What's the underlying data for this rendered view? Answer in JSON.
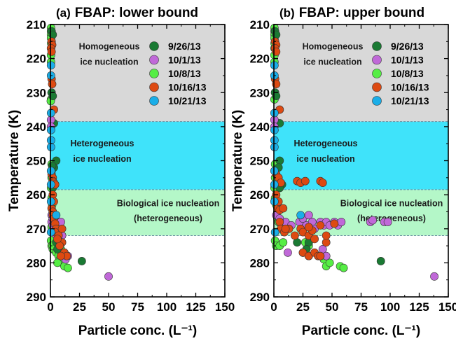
{
  "colors": {
    "homogeneous": "#d8d8d8",
    "heterogeneous": "#3fe3fa",
    "biological": "#b4f7c8",
    "series": {
      "9/26/13": "#1a7a33",
      "10/1/13": "#c068d8",
      "10/8/13": "#55ee44",
      "10/16/13": "#dd4a12",
      "10/21/13": "#1aaee8"
    }
  },
  "chart_data": [
    {
      "type": "scatter",
      "title": "(a) FBAP: lower bound",
      "title_letter": "(a)",
      "title_text": "FBAP: lower bound",
      "xlabel": "Particle conc. (L⁻¹)",
      "ylabel": "Temperature (K)",
      "xlim": [
        0,
        150
      ],
      "ylim": [
        210,
        290
      ],
      "y_inverted": true,
      "xticks": [
        0,
        25,
        50,
        75,
        100,
        125,
        150
      ],
      "yticks": [
        210,
        220,
        230,
        240,
        250,
        260,
        270,
        280,
        290
      ],
      "legend_position": "top-right",
      "regions": [
        {
          "name": "Homogeneous ice nucleation",
          "lines": [
            "Homogeneous",
            "ice nucleation"
          ],
          "y_range": [
            210,
            238.5
          ],
          "color_key": "homogeneous"
        },
        {
          "name": "Heterogeneous ice nucleation",
          "lines": [
            "Heterogeneous",
            "ice nucleation"
          ],
          "y_range": [
            238.5,
            258.5
          ],
          "color_key": "heterogeneous"
        },
        {
          "name": "Biological ice nucleation (heterogeneous)",
          "lines": [
            "Biological ice nucleation",
            "(heterogeneous)"
          ],
          "y_range": [
            258.5,
            272
          ],
          "color_key": "biological"
        }
      ],
      "series": [
        {
          "name": "10/8/13",
          "points": [
            [
              0.5,
              211
            ],
            [
              0.5,
              212
            ],
            [
              0.5,
              213
            ],
            [
              0.5,
              214
            ],
            [
              0.6,
              215.5
            ],
            [
              0.5,
              217
            ],
            [
              0.5,
              219
            ],
            [
              0.5,
              221
            ],
            [
              1,
              230
            ],
            [
              0.5,
              232
            ],
            [
              0.3,
              232.5
            ],
            [
              1,
              251
            ],
            [
              1,
              253
            ],
            [
              1,
              255
            ],
            [
              0.5,
              258
            ],
            [
              1,
              261
            ],
            [
              0.7,
              262
            ],
            [
              1.5,
              263
            ],
            [
              2,
              267
            ],
            [
              2,
              268
            ],
            [
              0.5,
              273.5
            ],
            [
              1,
              275
            ],
            [
              2,
              276
            ],
            [
              3,
              276
            ],
            [
              5,
              277
            ],
            [
              7,
              278
            ],
            [
              8,
              279
            ],
            [
              10,
              280
            ],
            [
              12,
              281
            ],
            [
              15,
              281.5
            ],
            [
              3,
              273
            ],
            [
              5,
              274
            ],
            [
              9,
              276
            ],
            [
              6,
              280
            ],
            [
              1,
              269.5
            ],
            [
              2,
              275
            ]
          ]
        },
        {
          "name": "9/26/13",
          "points": [
            [
              1,
              212
            ],
            [
              2,
              213
            ],
            [
              1,
              230
            ],
            [
              2,
              231
            ],
            [
              3,
              239
            ],
            [
              5,
              250
            ],
            [
              3,
              252
            ],
            [
              4,
              257
            ],
            [
              2,
              258
            ],
            [
              5,
              274
            ],
            [
              8,
              274
            ],
            [
              6,
              276
            ],
            [
              27,
              279.5
            ],
            [
              2,
              265
            ],
            [
              3,
              267.5
            ],
            [
              1.5,
              251.5
            ]
          ]
        },
        {
          "name": "10/1/13",
          "points": [
            [
              0.5,
              238
            ],
            [
              0.5,
              240
            ],
            [
              1,
              268
            ],
            [
              2,
              269
            ],
            [
              3,
              268.5
            ],
            [
              5,
              270
            ],
            [
              4,
              271.5
            ],
            [
              9,
              268
            ],
            [
              7,
              270.5
            ],
            [
              10,
              272
            ],
            [
              12,
              277
            ],
            [
              15,
              278
            ],
            [
              13,
              279
            ],
            [
              50,
              284
            ],
            [
              1,
              266
            ],
            [
              2,
              267
            ]
          ]
        },
        {
          "name": "10/16/13",
          "points": [
            [
              1,
              215
            ],
            [
              1.5,
              216
            ],
            [
              0.5,
              217
            ],
            [
              1,
              218
            ],
            [
              1,
              226
            ],
            [
              1.5,
              227.5
            ],
            [
              3,
              235
            ],
            [
              1,
              254
            ],
            [
              2,
              255
            ],
            [
              2,
              256
            ],
            [
              3,
              256.5
            ],
            [
              4,
              257
            ],
            [
              1,
              264
            ],
            [
              2,
              265
            ],
            [
              2,
              266
            ],
            [
              3,
              267
            ],
            [
              4,
              268.5
            ],
            [
              5,
              270
            ],
            [
              4,
              271
            ],
            [
              7,
              272
            ],
            [
              10,
              274
            ],
            [
              8,
              275
            ],
            [
              12,
              277
            ],
            [
              14,
              278
            ],
            [
              9,
              278
            ],
            [
              6,
              273
            ],
            [
              2,
              260
            ],
            [
              3,
              262
            ],
            [
              10,
              270
            ]
          ]
        },
        {
          "name": "10/21/13",
          "points": [
            [
              0.5,
              222
            ],
            [
              0.5,
              225
            ],
            [
              0.5,
              236
            ],
            [
              0.5,
              241
            ],
            [
              0.5,
              244
            ],
            [
              0.5,
              246
            ],
            [
              0.5,
              253
            ],
            [
              0.5,
              257
            ],
            [
              0.5,
              262
            ],
            [
              5,
              266
            ],
            [
              0.5,
              271
            ]
          ]
        }
      ]
    },
    {
      "type": "scatter",
      "title": "(b) FBAP: upper bound",
      "title_letter": "(b)",
      "title_text": "FBAP: upper bound",
      "xlabel": "Particle conc. (L⁻¹)",
      "ylabel": "Temperature (K)",
      "xlim": [
        0,
        150
      ],
      "ylim": [
        210,
        290
      ],
      "y_inverted": true,
      "xticks": [
        0,
        25,
        50,
        75,
        100,
        125,
        150
      ],
      "yticks": [
        210,
        220,
        230,
        240,
        250,
        260,
        270,
        280,
        290
      ],
      "legend_position": "top-right",
      "regions": [
        {
          "name": "Homogeneous ice nucleation",
          "lines": [
            "Homogeneous",
            "ice nucleation"
          ],
          "y_range": [
            210,
            238.5
          ],
          "color_key": "homogeneous"
        },
        {
          "name": "Heterogeneous ice nucleation",
          "lines": [
            "Heterogeneous",
            "ice nucleation"
          ],
          "y_range": [
            238.5,
            258.5
          ],
          "color_key": "heterogeneous"
        },
        {
          "name": "Biological ice nucleation (heterogeneous)",
          "lines": [
            "Biological ice nucleation",
            "(heterogeneous)"
          ],
          "y_range": [
            258.5,
            272
          ],
          "color_key": "biological"
        }
      ],
      "series": [
        {
          "name": "10/8/13",
          "points": [
            [
              0.5,
              211
            ],
            [
              0.5,
              212
            ],
            [
              0.5,
              213
            ],
            [
              0.5,
              214
            ],
            [
              0.6,
              215.5
            ],
            [
              0.5,
              217
            ],
            [
              0.5,
              219
            ],
            [
              0.5,
              221
            ],
            [
              1,
              230
            ],
            [
              0.5,
              232
            ],
            [
              1,
              251
            ],
            [
              1,
              253
            ],
            [
              1,
              255
            ],
            [
              0.5,
              258
            ],
            [
              1,
              261
            ],
            [
              1,
              262
            ],
            [
              2,
              263
            ],
            [
              3,
              267
            ],
            [
              4,
              268
            ],
            [
              1,
              273.5
            ],
            [
              2,
              275
            ],
            [
              5,
              275
            ],
            [
              8,
              274
            ],
            [
              25,
              277
            ],
            [
              30,
              278
            ],
            [
              43,
              279
            ],
            [
              45,
              281
            ],
            [
              48,
              280
            ],
            [
              57,
              281
            ],
            [
              60,
              281.5
            ],
            [
              27,
              274
            ],
            [
              30,
              275
            ]
          ]
        },
        {
          "name": "9/26/13",
          "points": [
            [
              1,
              212
            ],
            [
              2,
              213
            ],
            [
              1,
              230
            ],
            [
              2,
              231
            ],
            [
              5,
              239
            ],
            [
              5,
              250
            ],
            [
              4,
              252
            ],
            [
              7,
              257
            ],
            [
              5,
              258
            ],
            [
              20,
              274
            ],
            [
              30,
              274
            ],
            [
              28,
              276
            ],
            [
              92,
              279.5
            ],
            [
              3,
              265
            ],
            [
              5,
              267.5
            ]
          ]
        },
        {
          "name": "10/1/13",
          "points": [
            [
              0.5,
              238
            ],
            [
              0.5,
              240
            ],
            [
              10,
              268
            ],
            [
              15,
              269
            ],
            [
              22,
              268
            ],
            [
              25,
              267
            ],
            [
              28,
              269
            ],
            [
              30,
              266
            ],
            [
              33,
              268
            ],
            [
              35,
              270
            ],
            [
              40,
              268
            ],
            [
              43,
              269
            ],
            [
              45,
              268
            ],
            [
              48,
              269
            ],
            [
              52,
              268
            ],
            [
              55,
              269
            ],
            [
              58,
              268
            ],
            [
              83,
              268
            ],
            [
              85,
              267.5
            ],
            [
              95,
              268
            ],
            [
              98,
              268
            ],
            [
              42,
              276
            ],
            [
              45,
              278
            ],
            [
              12,
              277
            ],
            [
              138,
              284
            ],
            [
              2,
              266
            ],
            [
              5,
              267
            ]
          ]
        },
        {
          "name": "10/16/13",
          "points": [
            [
              1,
              215
            ],
            [
              2,
              216
            ],
            [
              1,
              217
            ],
            [
              2,
              218
            ],
            [
              1,
              226
            ],
            [
              2,
              227.5
            ],
            [
              5,
              235
            ],
            [
              2,
              254
            ],
            [
              4,
              255
            ],
            [
              6,
              256.5
            ],
            [
              20,
              256
            ],
            [
              23,
              256.5
            ],
            [
              27,
              256
            ],
            [
              40,
              256
            ],
            [
              42,
              256.5
            ],
            [
              3,
              264
            ],
            [
              5,
              264.5
            ],
            [
              8,
              264
            ],
            [
              5,
              268
            ],
            [
              6,
              270
            ],
            [
              9,
              271
            ],
            [
              13,
              270
            ],
            [
              18,
              272
            ],
            [
              23,
              270
            ],
            [
              25,
              271
            ],
            [
              30,
              272
            ],
            [
              33,
              270.5
            ],
            [
              35,
              273
            ],
            [
              45,
              274
            ],
            [
              25,
              277
            ],
            [
              30,
              278
            ],
            [
              35,
              277
            ],
            [
              38,
              278
            ],
            [
              40,
              278
            ],
            [
              2,
              260
            ],
            [
              4,
              262
            ],
            [
              10,
              270
            ],
            [
              30,
              269.5
            ],
            [
              40,
              269
            ],
            [
              45,
              272
            ],
            [
              52,
              268.5
            ]
          ]
        },
        {
          "name": "10/21/13",
          "points": [
            [
              0.5,
              222
            ],
            [
              0.5,
              225
            ],
            [
              0.5,
              236
            ],
            [
              0.5,
              241
            ],
            [
              0.5,
              244
            ],
            [
              0.5,
              246
            ],
            [
              0.5,
              253
            ],
            [
              0.5,
              257
            ],
            [
              0.5,
              262
            ],
            [
              23,
              266
            ],
            [
              1,
              271
            ]
          ]
        }
      ]
    }
  ],
  "legend": [
    "9/26/13",
    "10/1/13",
    "10/8/13",
    "10/16/13",
    "10/21/13"
  ]
}
